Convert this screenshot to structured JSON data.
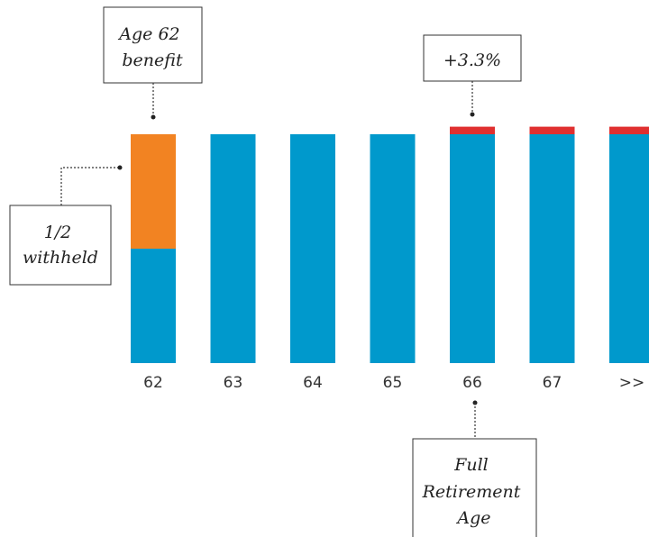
{
  "chart_data": {
    "type": "bar",
    "stacked": true,
    "categories": [
      "62",
      "63",
      "64",
      "65",
      "66",
      "67",
      ">>"
    ],
    "series": [
      {
        "key": "base",
        "values": [
          0.5,
          1,
          1,
          1,
          1,
          1,
          1
        ],
        "color": "#0099cc"
      },
      {
        "key": "withheld",
        "values": [
          0.5,
          0,
          0,
          0,
          0,
          0,
          0
        ],
        "color": "#f28322"
      },
      {
        "key": "increase",
        "values": [
          0,
          0,
          0,
          0,
          0.033,
          0.033,
          0.033
        ],
        "color": "#e03030"
      }
    ],
    "ylim": [
      0,
      1.033
    ],
    "grid": false,
    "legend": "none",
    "annotations": [
      {
        "key": "age62",
        "lines": [
          "Age 62",
          "benefit"
        ],
        "target": "62"
      },
      {
        "key": "increase",
        "lines": [
          "+3.3%"
        ],
        "target": "66"
      },
      {
        "key": "withheld",
        "lines": [
          "1/2",
          "withheld"
        ],
        "target": "62"
      },
      {
        "key": "fra",
        "lines": [
          "Full",
          "Retirement",
          "Age"
        ],
        "target": "66"
      }
    ]
  }
}
